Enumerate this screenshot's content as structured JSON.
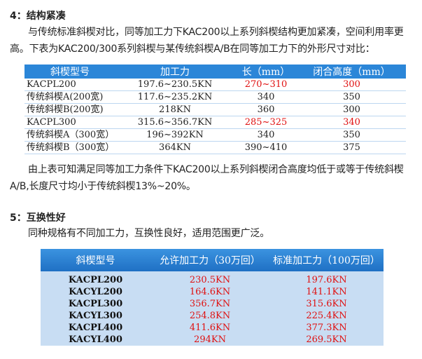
{
  "section4": {
    "heading": "4：结构紧凑",
    "paragraph1": "与传统标准斜楔对比，同等加工力下KAC200以上系列斜楔结构更加紧凑，空间利用率更高。下表为KAC200/300系列斜楔与某传统斜楔A/B在同等加工力下的外形尺寸对比：",
    "table": {
      "header": [
        "斜楔型号",
        "加工力",
        "长（mm）",
        "闭合高度（mm）"
      ],
      "rows": [
        [
          "KACPL200",
          "197.6~230.5KN",
          "270~310",
          "300"
        ],
        [
          "传统斜楔A(200宽)",
          "117.6~235.2KN",
          "340",
          "350"
        ],
        [
          "传统斜楔B(200宽)",
          "218KN",
          "360",
          "300"
        ],
        [
          "KACPL300",
          "315.6~356.7KN",
          "285~325",
          "340"
        ],
        [
          "传统斜楔A（300宽）",
          "196~392KN",
          "340",
          "350"
        ],
        [
          "传统斜楔B（300宽）",
          "364KN",
          "390~410",
          "375"
        ]
      ]
    },
    "paragraph2": "由上表可知满足同等加工力条件下KAC200以上系列斜楔闭合高度均低于或等于传统斜楔A/B,长度尺寸均小于传统斜楔13%~20%。"
  },
  "section5": {
    "heading": "5：互换性好",
    "paragraph": "同种规格有不同加工力，互换性良好，适用范围更广泛。",
    "table": {
      "header": [
        "斜楔型号",
        "允许加工力（30万回）",
        "标准加工力（100万回）"
      ],
      "rows": [
        [
          "KACPL200",
          "230.5KN",
          "197.6KN"
        ],
        [
          "KACYL200",
          "164.6KN",
          "141.1KN"
        ],
        [
          "KACPL300",
          "356.7KN",
          "315.6KN"
        ],
        [
          "KACYL300",
          "254.8KN",
          "225.4KN"
        ],
        [
          "KACPL400",
          "411.6KN",
          "377.3KN"
        ],
        [
          "KACYL400",
          "294KN",
          "269.5KN"
        ]
      ]
    }
  }
}
